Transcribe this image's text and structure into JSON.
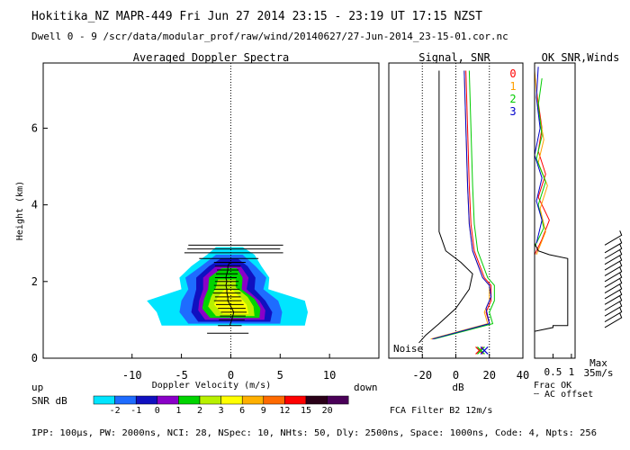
{
  "header": {
    "line1": "Hokitika_NZ  MAPR-449  Fri Jun 27 2014 23:15 - 23:19 UT 17:15 NZST",
    "line2": "Dwell  0 - 9   /scr/data/modular_prof/raw/wind/20140627/27-Jun-2014_23-15-01.cor.nc"
  },
  "footer": {
    "params": "IPP: 100μs,  PW: 2000ns,  NCI:  28,  NSpec: 10, NHts: 50,  Dly: 2500ns,  Space: 1000ns,  Code: 4,  Npts: 256",
    "fca_filter": "FCA Filter B2 12m/s"
  },
  "colorbar": {
    "label": "SNR dB",
    "ticks": [
      "-2",
      "-1",
      "0",
      "1",
      "2",
      "3",
      "6",
      "9",
      "12",
      "15",
      "20"
    ],
    "colors": [
      "#00e5ff",
      "#1e6cff",
      "#1010c0",
      "#8a00c8",
      "#00d400",
      "#b8f000",
      "#ffff00",
      "#ffb000",
      "#ff6a00",
      "#ff0000",
      "#2a0018",
      "#4a0058"
    ]
  },
  "chart_data": [
    {
      "type": "heatmap",
      "title": "Averaged Doppler Spectra",
      "xlabel": "Doppler Velocity (m/s)",
      "ylabel": "Height (km)",
      "x_ticks": [
        "-10",
        "-5",
        "0",
        "5",
        "10"
      ],
      "y_ticks": [
        "0",
        "2",
        "4",
        "6"
      ],
      "xlim": [
        -19,
        15
      ],
      "ylim": [
        0,
        7.7
      ],
      "left_note": "up",
      "right_note": "down",
      "snr_contours": [
        {
          "level_color": "#00e5ff",
          "bounds": [
            [
              0.85,
              -7.0,
              7.5
            ],
            [
              1.2,
              -7.5,
              7.8
            ],
            [
              1.5,
              -8.5,
              7.5
            ],
            [
              1.8,
              -5.0,
              3.8
            ],
            [
              2.1,
              -5.2,
              3.9
            ],
            [
              2.4,
              -4.0,
              3.1
            ],
            [
              2.7,
              -2.4,
              2.4
            ],
            [
              2.9,
              -1.5,
              1.2
            ]
          ]
        },
        {
          "level_color": "#1e6cff",
          "bounds": [
            [
              0.9,
              -4.3,
              5.0
            ],
            [
              1.2,
              -5.2,
              5.2
            ],
            [
              1.5,
              -5.0,
              4.8
            ],
            [
              1.8,
              -4.3,
              3.3
            ],
            [
              2.1,
              -4.6,
              3.6
            ],
            [
              2.4,
              -3.0,
              2.5
            ],
            [
              2.7,
              -1.5,
              1.2
            ]
          ]
        },
        {
          "level_color": "#1010c0",
          "bounds": [
            [
              0.95,
              -3.3,
              4.0
            ],
            [
              1.2,
              -4.0,
              4.2
            ],
            [
              1.5,
              -3.8,
              3.5
            ],
            [
              1.8,
              -3.5,
              2.4
            ],
            [
              2.1,
              -3.5,
              2.5
            ],
            [
              2.4,
              -2.2,
              1.7
            ],
            [
              2.6,
              -1.0,
              0.7
            ]
          ]
        },
        {
          "level_color": "#8a00c8",
          "bounds": [
            [
              1.0,
              -2.6,
              3.4
            ],
            [
              1.25,
              -3.3,
              3.5
            ],
            [
              1.5,
              -3.2,
              2.9
            ],
            [
              1.8,
              -2.8,
              1.6
            ],
            [
              2.1,
              -2.8,
              1.8
            ],
            [
              2.4,
              -1.5,
              1.0
            ]
          ]
        },
        {
          "level_color": "#00d400",
          "bounds": [
            [
              1.05,
              -2.1,
              2.9
            ],
            [
              1.3,
              -2.9,
              3.0
            ],
            [
              1.55,
              -2.7,
              2.4
            ],
            [
              1.8,
              -2.3,
              1.1
            ],
            [
              2.1,
              -2.2,
              1.2
            ],
            [
              2.35,
              -0.9,
              0.6
            ]
          ]
        },
        {
          "level_color": "#b8f000",
          "bounds": [
            [
              1.1,
              -1.5,
              2.4
            ],
            [
              1.35,
              -2.3,
              2.3
            ],
            [
              1.6,
              -2.0,
              1.7
            ],
            [
              1.85,
              -1.5,
              0.5
            ],
            [
              2.05,
              -1.3,
              0.5
            ]
          ]
        },
        {
          "level_color": "#ffff00",
          "bounds": [
            [
              1.15,
              -0.8,
              1.8
            ],
            [
              1.4,
              -1.7,
              1.6
            ],
            [
              1.6,
              -1.3,
              0.9
            ],
            [
              1.8,
              -0.6,
              0.1
            ]
          ]
        }
      ],
      "mean_velocity_bars": [
        {
          "h": 0.65,
          "v": -0.3,
          "w": 4.2
        },
        {
          "h": 0.85,
          "v": -0.1,
          "w": 2.4
        },
        {
          "h": 1.0,
          "v": 0.1,
          "w": 2.6
        },
        {
          "h": 1.1,
          "v": 0.2,
          "w": 2.6
        },
        {
          "h": 1.2,
          "v": 0.3,
          "w": 2.6
        },
        {
          "h": 1.3,
          "v": 0.1,
          "w": 2.8
        },
        {
          "h": 1.4,
          "v": -0.1,
          "w": 2.8
        },
        {
          "h": 1.5,
          "v": -0.3,
          "w": 2.8
        },
        {
          "h": 1.6,
          "v": -0.3,
          "w": 2.6
        },
        {
          "h": 1.7,
          "v": -0.4,
          "w": 2.8
        },
        {
          "h": 1.8,
          "v": -0.4,
          "w": 2.6
        },
        {
          "h": 1.9,
          "v": -0.5,
          "w": 2.4
        },
        {
          "h": 2.0,
          "v": -0.4,
          "w": 2.4
        },
        {
          "h": 2.1,
          "v": -0.5,
          "w": 2.2
        },
        {
          "h": 2.2,
          "v": -0.4,
          "w": 2.2
        },
        {
          "h": 2.3,
          "v": -0.3,
          "w": 2.2
        },
        {
          "h": 2.4,
          "v": -0.3,
          "w": 2.6
        },
        {
          "h": 2.5,
          "v": -0.1,
          "w": 3.2
        },
        {
          "h": 2.6,
          "v": -0.2,
          "w": 6.0
        },
        {
          "h": 2.75,
          "v": 0.3,
          "w": 10.0
        },
        {
          "h": 2.85,
          "v": 0.3,
          "w": 9.4
        },
        {
          "h": 2.95,
          "v": 0.5,
          "w": 9.6
        }
      ]
    },
    {
      "type": "line",
      "title": "Signal, SNR",
      "xlabel": "dB",
      "x_ticks": [
        "-20",
        "0",
        "20",
        "40"
      ],
      "xlim": [
        -40,
        40
      ],
      "ylim": [
        0,
        7.7
      ],
      "noise_label": "Noise",
      "dotted_guides_x": [
        -20,
        0,
        20
      ],
      "series": [
        {
          "name": "0",
          "color": "#ff0000",
          "points": [
            [
              -14,
              0.5
            ],
            [
              20,
              0.9
            ],
            [
              18,
              1.2
            ],
            [
              21,
              1.5
            ],
            [
              21,
              1.9
            ],
            [
              17,
              2.1
            ],
            [
              11,
              2.8
            ],
            [
              9,
              3.5
            ],
            [
              8,
              4.5
            ],
            [
              7,
              6.0
            ],
            [
              6,
              7.5
            ]
          ]
        },
        {
          "name": "1",
          "color": "#ffa000",
          "points": [
            [
              -15,
              0.5
            ],
            [
              19,
              0.9
            ],
            [
              17,
              1.2
            ],
            [
              20,
              1.5
            ],
            [
              20,
              1.9
            ],
            [
              16,
              2.1
            ],
            [
              10,
              2.8
            ],
            [
              8,
              3.5
            ],
            [
              7,
              4.5
            ],
            [
              6,
              6.0
            ],
            [
              5,
              7.5
            ]
          ]
        },
        {
          "name": "2",
          "color": "#00cc00",
          "points": [
            [
              -13,
              0.5
            ],
            [
              22,
              0.9
            ],
            [
              20,
              1.2
            ],
            [
              23,
              1.5
            ],
            [
              23,
              1.9
            ],
            [
              19,
              2.1
            ],
            [
              13,
              2.8
            ],
            [
              11,
              3.5
            ],
            [
              10,
              4.5
            ],
            [
              9,
              6.0
            ],
            [
              8,
              7.5
            ]
          ]
        },
        {
          "name": "3",
          "color": "#0000cc",
          "points": [
            [
              -14,
              0.5
            ],
            [
              20,
              0.9
            ],
            [
              18,
              1.3
            ],
            [
              21,
              1.6
            ],
            [
              20,
              1.9
            ],
            [
              16,
              2.1
            ],
            [
              10,
              2.8
            ],
            [
              8,
              3.5
            ],
            [
              7,
              4.5
            ],
            [
              6,
              6.0
            ],
            [
              5,
              7.5
            ]
          ]
        },
        {
          "name": "",
          "color": "#000000",
          "points": [
            [
              -22,
              0.4
            ],
            [
              -18,
              0.6
            ],
            [
              -10,
              0.9
            ],
            [
              0,
              1.3
            ],
            [
              8,
              1.8
            ],
            [
              10,
              2.2
            ],
            [
              3,
              2.5
            ],
            [
              -6,
              2.8
            ],
            [
              -10,
              3.3
            ],
            [
              -10,
              4.5
            ],
            [
              -10,
              6.0
            ],
            [
              -10,
              7.5
            ]
          ]
        }
      ],
      "noise_markers": [
        [
          14,
          0.2,
          "#ff0000"
        ],
        [
          15,
          0.2,
          "#00cc00"
        ],
        [
          17,
          0.2,
          "#0000cc"
        ]
      ]
    },
    {
      "type": "line",
      "title": "OK SNR,Winds",
      "x_ticks": [
        "0.5",
        "1"
      ],
      "xlim": [
        0,
        1.1
      ],
      "ylim": [
        0,
        7.7
      ],
      "xlabel_lines": [
        "Frac OK",
        "┄ AC offset"
      ],
      "max_label_lines": [
        "Max",
        "35m/s"
      ],
      "series": [
        {
          "name": "0",
          "color": "#ff0000",
          "points": [
            [
              0.0,
              2.7
            ],
            [
              0.2,
              3.1
            ],
            [
              0.4,
              3.6
            ],
            [
              0.1,
              4.2
            ],
            [
              0.3,
              4.8
            ],
            [
              0.1,
              5.4
            ],
            [
              0.2,
              6.0
            ],
            [
              0.05,
              7.0
            ]
          ]
        },
        {
          "name": "1",
          "color": "#ffa000",
          "points": [
            [
              0.05,
              2.7
            ],
            [
              0.3,
              3.3
            ],
            [
              0.15,
              3.9
            ],
            [
              0.35,
              4.5
            ],
            [
              0.1,
              5.1
            ],
            [
              0.25,
              5.7
            ],
            [
              0.1,
              6.5
            ],
            [
              0.0,
              7.5
            ]
          ]
        },
        {
          "name": "2",
          "color": "#00cc00",
          "points": [
            [
              0.0,
              2.9
            ],
            [
              0.25,
              3.4
            ],
            [
              0.1,
              4.0
            ],
            [
              0.3,
              4.6
            ],
            [
              0.05,
              5.2
            ],
            [
              0.2,
              5.8
            ],
            [
              0.1,
              6.6
            ],
            [
              0.2,
              7.3
            ]
          ]
        },
        {
          "name": "3",
          "color": "#0000cc",
          "points": [
            [
              0.05,
              3.0
            ],
            [
              0.2,
              3.6
            ],
            [
              0.05,
              4.1
            ],
            [
              0.2,
              4.7
            ],
            [
              0.0,
              5.3
            ],
            [
              0.15,
              6.0
            ],
            [
              0.05,
              6.8
            ],
            [
              0.1,
              7.6
            ]
          ]
        },
        {
          "name": "",
          "color": "#000000",
          "points": [
            [
              0.0,
              0.3
            ],
            [
              0.0,
              0.7
            ],
            [
              0.5,
              0.8
            ],
            [
              0.5,
              0.85
            ],
            [
              0.9,
              0.85
            ],
            [
              0.9,
              2.6
            ],
            [
              0.4,
              2.7
            ],
            [
              0.1,
              2.8
            ],
            [
              0.0,
              3.0
            ]
          ]
        }
      ],
      "wind_barbs_heights": [
        0.8,
        0.95,
        1.1,
        1.25,
        1.4,
        1.55,
        1.7,
        1.85,
        2.0,
        2.15,
        2.3,
        2.45,
        2.6,
        2.75,
        2.95
      ]
    }
  ]
}
